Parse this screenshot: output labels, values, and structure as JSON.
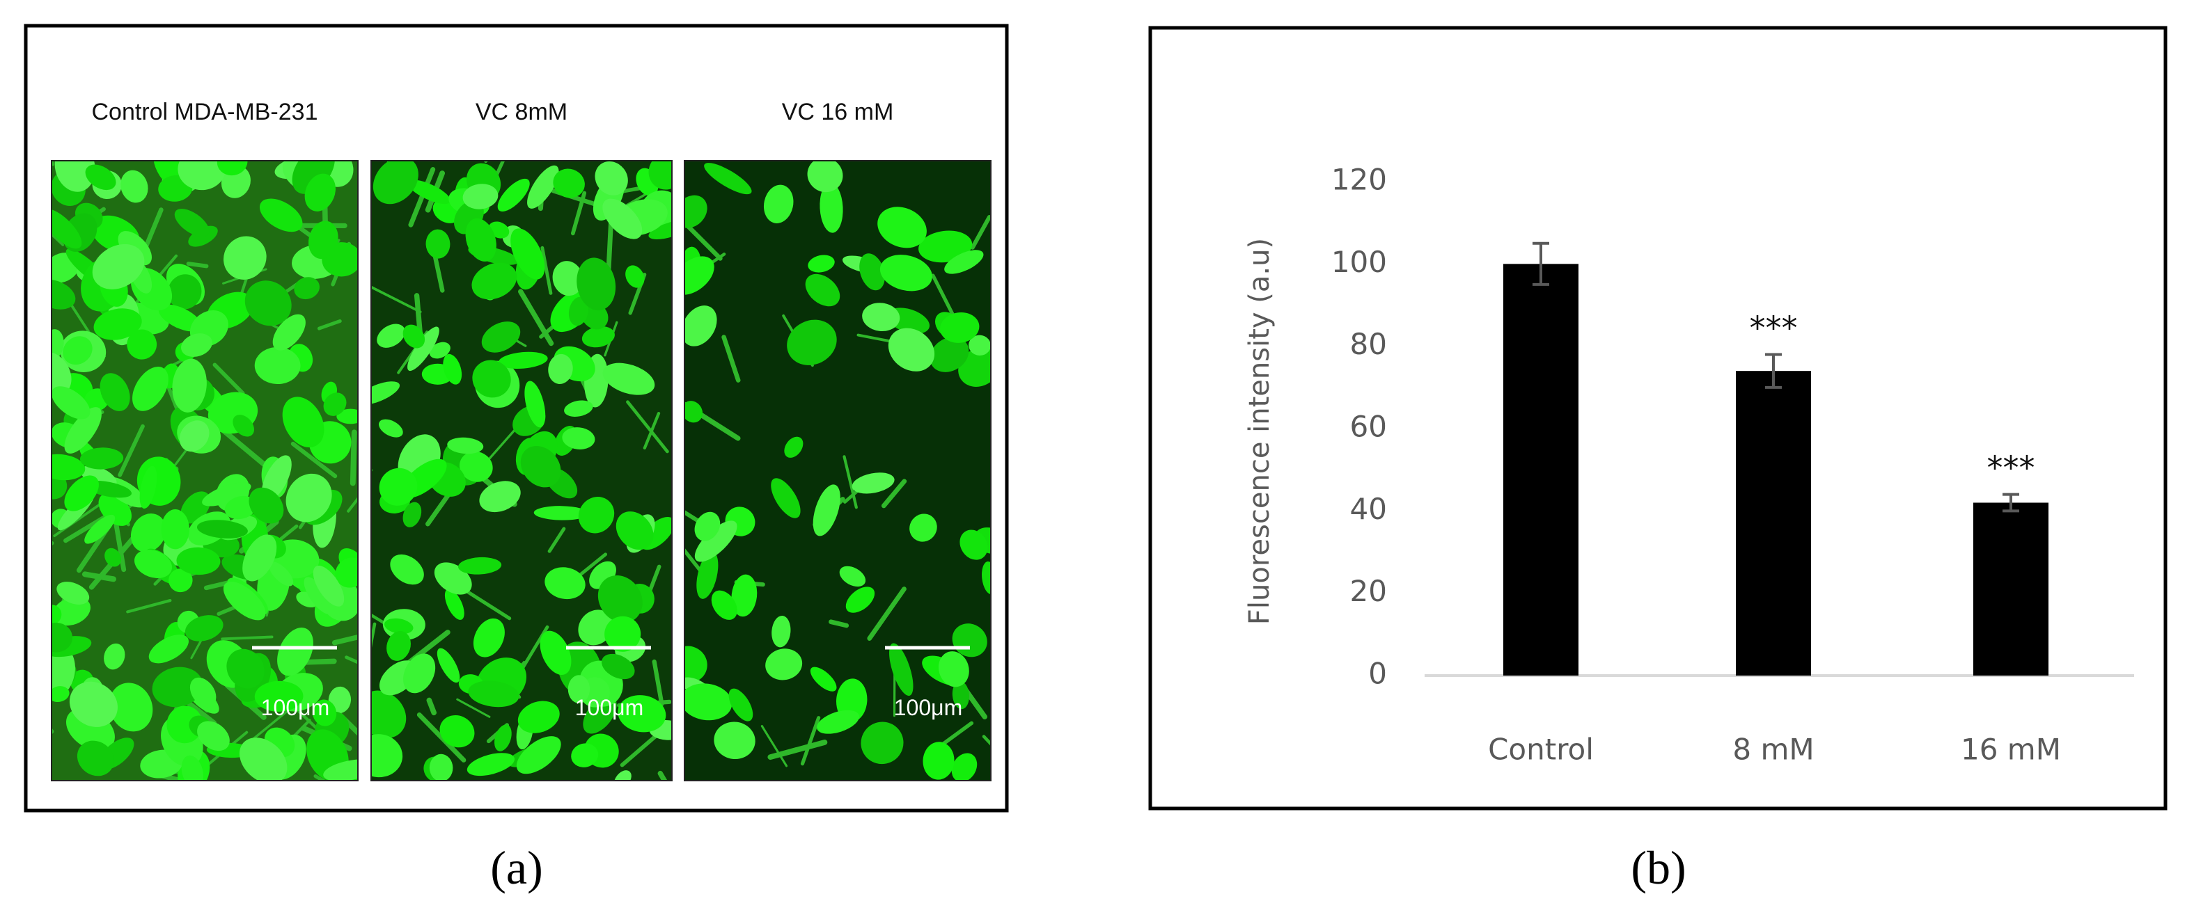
{
  "panel_a": {
    "images": [
      {
        "label": "Control MDA-MB-231",
        "scale_bar": "100μm"
      },
      {
        "label": "VC 8mM",
        "scale_bar": "100μm"
      },
      {
        "label": "VC 16 mM",
        "scale_bar": "100μm"
      }
    ],
    "caption": "(a)"
  },
  "chart_data": {
    "type": "bar",
    "ylabel": "Fluorescence intensity (a.u)",
    "categories": [
      "Control",
      "8 mM",
      "16 mM"
    ],
    "values": [
      100,
      74,
      42
    ],
    "errors": [
      5,
      4,
      2
    ],
    "significance": [
      null,
      "***",
      "***"
    ],
    "color": "#000000",
    "ylim": [
      0,
      120
    ],
    "yticks": [
      0,
      20,
      40,
      60,
      80,
      100,
      120
    ],
    "grid": false
  },
  "panel_b": {
    "caption": "(b)"
  }
}
